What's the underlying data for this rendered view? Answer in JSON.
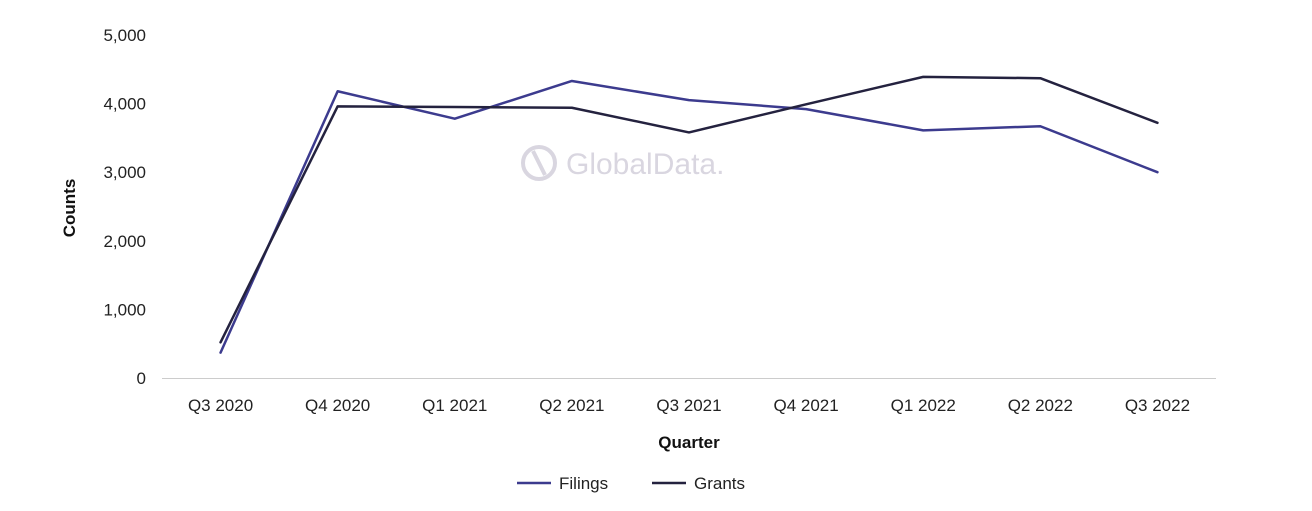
{
  "chart_data": {
    "type": "line",
    "categories": [
      "Q3 2020",
      "Q4 2020",
      "Q1 2021",
      "Q2 2021",
      "Q3 2021",
      "Q4 2021",
      "Q1 2022",
      "Q2 2022",
      "Q3 2022"
    ],
    "series": [
      {
        "name": "Filings",
        "color": "#3c3b8e",
        "values": [
          370,
          4180,
          3780,
          4330,
          4050,
          3920,
          3610,
          3670,
          3000
        ]
      },
      {
        "name": "Grants",
        "color": "#24223f",
        "values": [
          520,
          3960,
          3950,
          3940,
          3580,
          3990,
          4390,
          4370,
          3720
        ]
      }
    ],
    "xlabel": "Quarter",
    "ylabel": "Counts",
    "ylim": [
      0,
      5000
    ],
    "yticks": [
      0,
      1000,
      2000,
      3000,
      4000,
      5000
    ],
    "ytick_labels": [
      "0",
      "1,000",
      "2,000",
      "3,000",
      "4,000",
      "5,000"
    ],
    "grid": false,
    "legend_position": "bottom-center"
  },
  "watermark": {
    "text": "GlobalData.",
    "icon": "globaldata-logo-icon"
  }
}
